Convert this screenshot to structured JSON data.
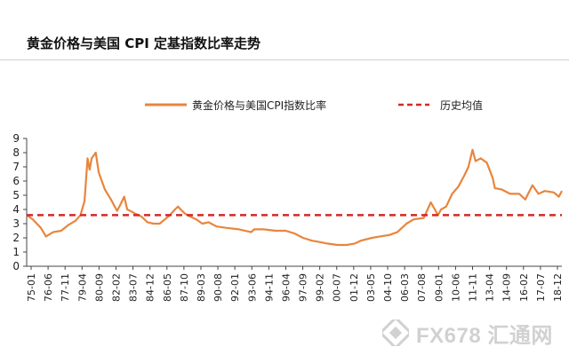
{
  "title": "黄金价格与美国 CPI 定基指数比率走势",
  "watermark": {
    "text": "FX678 汇通网"
  },
  "colors": {
    "gold_series": "#E8853D",
    "average_line": "#D62728"
  },
  "chart_data": {
    "type": "line",
    "title": "黄金价格与美国 CPI 定基指数比率走势",
    "xlabel": "",
    "ylabel": "",
    "ylim": [
      0,
      9
    ],
    "yticks": [
      0,
      1,
      2,
      3,
      4,
      5,
      6,
      7,
      8,
      9
    ],
    "xticks": [
      "75-01",
      "76-06",
      "77-11",
      "79-04",
      "80-09",
      "82-02",
      "83-07",
      "84-12",
      "86-05",
      "87-10",
      "89-03",
      "90-08",
      "92-01",
      "93-06",
      "94-11",
      "96-04",
      "97-09",
      "99-02",
      "00-07",
      "01-12",
      "03-05",
      "04-10",
      "06-03",
      "07-08",
      "09-01",
      "10-06",
      "11-11",
      "13-04",
      "14-09",
      "16-02",
      "17-07",
      "18-12"
    ],
    "legend_position": "top",
    "grid": false,
    "series": [
      {
        "name": "黄金价格与美国CPI指数比率",
        "style": "solid",
        "x": [
          "1975-01",
          "1975-07",
          "1976-03",
          "1976-08",
          "1977-03",
          "1977-11",
          "1978-06",
          "1979-01",
          "1979-06",
          "1979-10",
          "1980-01",
          "1980-03",
          "1980-05",
          "1980-09",
          "1980-12",
          "1981-06",
          "1981-12",
          "1982-06",
          "1982-09",
          "1983-01",
          "1983-04",
          "1983-07",
          "1983-12",
          "1984-06",
          "1984-12",
          "1985-06",
          "1985-12",
          "1986-05",
          "1986-10",
          "1987-03",
          "1987-06",
          "1987-10",
          "1988-01",
          "1988-06",
          "1988-12",
          "1989-06",
          "1989-12",
          "1990-08",
          "1991-06",
          "1992-06",
          "1993-06",
          "1993-09",
          "1994-06",
          "1995-06",
          "1996-04",
          "1997-01",
          "1997-09",
          "1998-06",
          "1999-02",
          "1999-09",
          "2000-07",
          "2001-04",
          "2001-12",
          "2002-06",
          "2003-05",
          "2004-01",
          "2004-10",
          "2005-06",
          "2006-03",
          "2006-10",
          "2007-08",
          "2008-03",
          "2008-10",
          "2009-01",
          "2009-06",
          "2009-12",
          "2010-06",
          "2010-12",
          "2011-04",
          "2011-08",
          "2011-11",
          "2012-04",
          "2012-10",
          "2013-04",
          "2013-06",
          "2014-01",
          "2014-09",
          "2015-06",
          "2015-12",
          "2016-02",
          "2016-07",
          "2017-01",
          "2017-07",
          "2018-04",
          "2018-09",
          "2018-12"
        ],
        "values": [
          3.6,
          3.3,
          2.7,
          2.1,
          2.4,
          2.5,
          2.9,
          3.2,
          3.6,
          4.6,
          7.6,
          6.8,
          7.6,
          8.0,
          6.6,
          5.4,
          4.7,
          3.9,
          4.3,
          4.9,
          4.0,
          3.9,
          3.7,
          3.5,
          3.1,
          3.0,
          3.0,
          3.3,
          3.6,
          4.0,
          4.2,
          3.9,
          3.7,
          3.5,
          3.3,
          3.0,
          3.1,
          2.8,
          2.7,
          2.6,
          2.4,
          2.6,
          2.6,
          2.5,
          2.5,
          2.3,
          2.0,
          1.8,
          1.7,
          1.6,
          1.5,
          1.5,
          1.6,
          1.8,
          2.0,
          2.1,
          2.2,
          2.4,
          3.0,
          3.3,
          3.4,
          4.5,
          3.6,
          4.0,
          4.2,
          5.1,
          5.6,
          6.4,
          7.0,
          8.2,
          7.4,
          7.6,
          7.3,
          6.2,
          5.5,
          5.4,
          5.1,
          5.1,
          4.7,
          5.0,
          5.7,
          5.1,
          5.3,
          5.2,
          4.9,
          5.3
        ]
      },
      {
        "name": "历史均值",
        "style": "dashed",
        "x": [
          "1975-01",
          "2018-12"
        ],
        "values": [
          3.6,
          3.6
        ]
      }
    ]
  }
}
